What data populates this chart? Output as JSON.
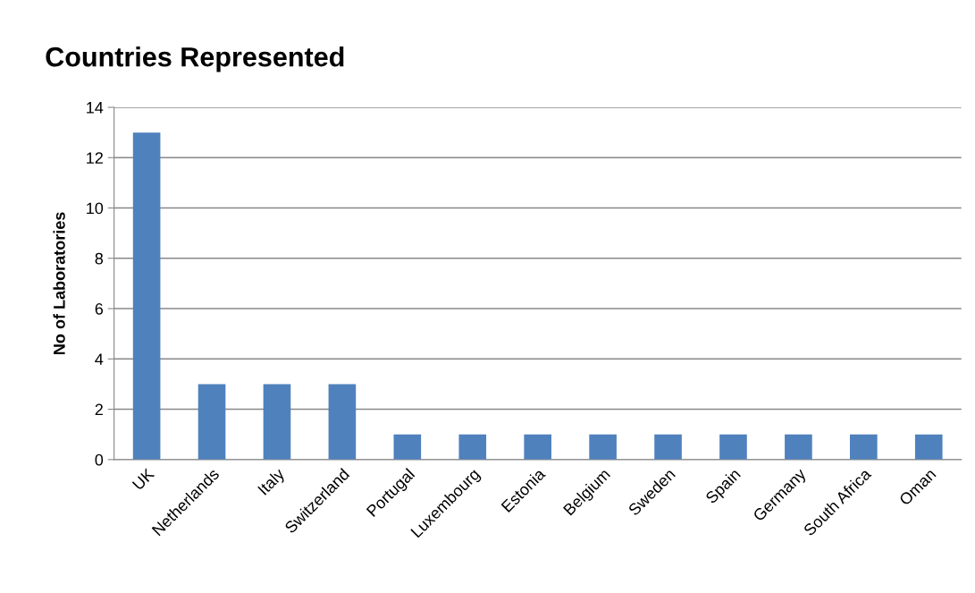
{
  "chart_data": {
    "type": "bar",
    "title": "Countries Represented",
    "ylabel": "No of Laboratories",
    "categories": [
      "UK",
      "Netherlands",
      "Italy",
      "Switzerland",
      "Portugal",
      "Luxembourg",
      "Estonia",
      "Belgium",
      "Sweden",
      "Spain",
      "Germany",
      "South Africa",
      "Oman"
    ],
    "values": [
      13,
      3,
      3,
      3,
      1,
      1,
      1,
      1,
      1,
      1,
      1,
      1,
      1
    ],
    "color": "#4f81bd",
    "ylim": [
      0,
      14
    ],
    "yticks": [
      0,
      2,
      4,
      6,
      8,
      10,
      12,
      14
    ],
    "grid": "y",
    "legend": false
  }
}
